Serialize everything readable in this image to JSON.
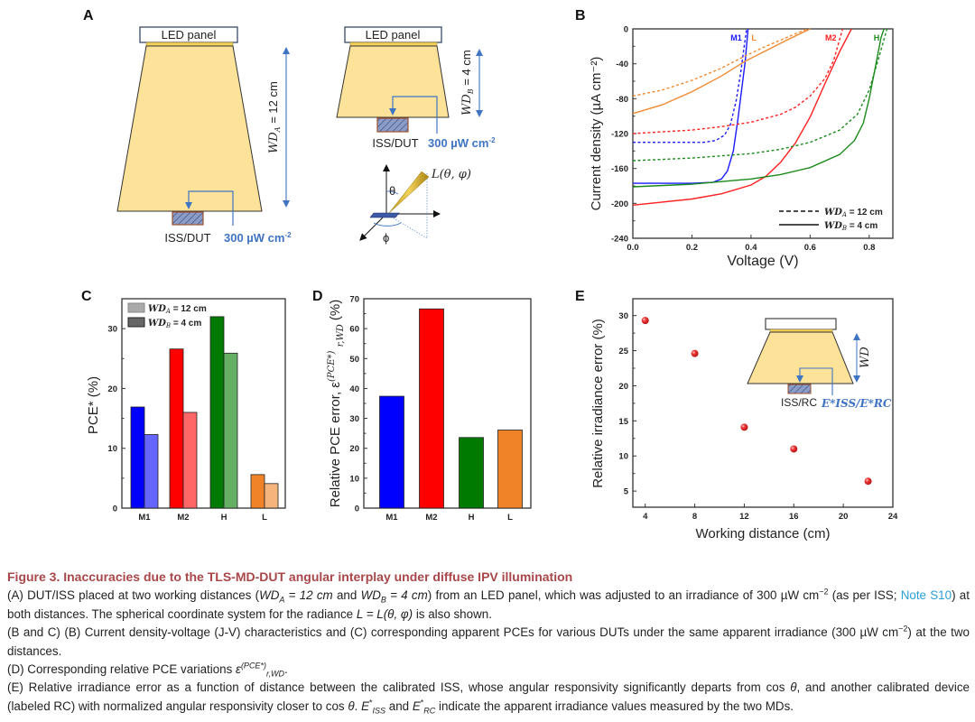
{
  "panel_labels": {
    "a": "A",
    "b": "B",
    "c": "C",
    "d": "D",
    "e": "E"
  },
  "panel_a": {
    "led_panel": "LED panel",
    "iss_dut": "ISS/DUT",
    "irradiance": "300 µW cm",
    "irradiance_exp": "-2",
    "wd_a": {
      "var": "WD",
      "sub": "A",
      "rest": " = 12 cm"
    },
    "wd_b": {
      "var": "WD",
      "sub": "B",
      "rest": " = 4 cm"
    },
    "radiance": "L(θ, φ)",
    "theta": "θ",
    "phi": "ϕ",
    "colors": {
      "beam": "#fde39a",
      "arrow": "#3f74c2",
      "dut_fill": "#8a9cc8",
      "dut_border": "#a0522d"
    }
  },
  "panel_e_inset": {
    "iss_rc": "ISS/RC",
    "wd": "WD",
    "e_iss": "E*ISS",
    "e_sep": "/",
    "e_rc": "E*RC"
  },
  "chart_data": [
    {
      "id": "B",
      "type": "line",
      "xlabel": "Voltage (V)",
      "ylabel": "Current density (µA cm⁻²)",
      "xlim": [
        0,
        0.88
      ],
      "ylim": [
        -240,
        0
      ],
      "xticks": [
        "0.0",
        "0.2",
        "0.4",
        "0.6",
        "0.8"
      ],
      "xtick_values": [
        0,
        0.2,
        0.4,
        0.6,
        0.8
      ],
      "yticks": [
        "0",
        "-40",
        "-80",
        "-120",
        "-160",
        "-200",
        "-240"
      ],
      "ytick_values": [
        0,
        -40,
        -80,
        -120,
        -160,
        -200,
        -240
      ],
      "legend": {
        "placement": "bottom-right",
        "dashed": {
          "var": "WD",
          "sub": "A",
          "rest": " = 12 cm"
        },
        "solid": {
          "var": "WD",
          "sub": "B",
          "rest": " = 4 cm"
        }
      },
      "series_labels": [
        {
          "text": "M1",
          "color": "#1a1aff",
          "x": 0.35
        },
        {
          "text": "L",
          "color": "#f08a30",
          "x": 0.41
        },
        {
          "text": "M2",
          "color": "#ff2020",
          "x": 0.67
        },
        {
          "text": "H",
          "color": "#1a8a1a",
          "x": 0.825
        }
      ],
      "series": [
        {
          "name": "M1",
          "distance": "WD_B = 4 cm",
          "style": "solid",
          "color": "#1a1aff",
          "points": [
            [
              0,
              -177
            ],
            [
              0.2,
              -177
            ],
            [
              0.27,
              -176
            ],
            [
              0.3,
              -172
            ],
            [
              0.32,
              -163
            ],
            [
              0.34,
              -140
            ],
            [
              0.355,
              -105
            ],
            [
              0.37,
              -65
            ],
            [
              0.38,
              -38
            ],
            [
              0.39,
              0
            ]
          ]
        },
        {
          "name": "M1",
          "distance": "WD_A = 12 cm",
          "style": "dashed",
          "color": "#1a1aff",
          "points": [
            [
              0,
              -130
            ],
            [
              0.24,
              -130
            ],
            [
              0.28,
              -128
            ],
            [
              0.31,
              -122
            ],
            [
              0.33,
              -110
            ],
            [
              0.35,
              -82
            ],
            [
              0.365,
              -50
            ],
            [
              0.375,
              -25
            ],
            [
              0.385,
              0
            ]
          ]
        },
        {
          "name": "L",
          "distance": "WD_B = 4 cm",
          "style": "solid",
          "color": "#f08a30",
          "points": [
            [
              0,
              -97
            ],
            [
              0.1,
              -87
            ],
            [
              0.2,
              -72
            ],
            [
              0.3,
              -54
            ],
            [
              0.38,
              -37
            ],
            [
              0.45,
              -25
            ],
            [
              0.52,
              -13
            ],
            [
              0.6,
              0
            ]
          ]
        },
        {
          "name": "L",
          "distance": "WD_A = 12 cm",
          "style": "dashed",
          "color": "#f08a30",
          "points": [
            [
              0,
              -77
            ],
            [
              0.1,
              -70
            ],
            [
              0.2,
              -59
            ],
            [
              0.3,
              -45
            ],
            [
              0.38,
              -31
            ],
            [
              0.45,
              -20
            ],
            [
              0.52,
              -10
            ],
            [
              0.59,
              0
            ]
          ]
        },
        {
          "name": "M2",
          "distance": "WD_B = 4 cm",
          "style": "solid",
          "color": "#ff2020",
          "points": [
            [
              0,
              -202
            ],
            [
              0.2,
              -195
            ],
            [
              0.3,
              -189
            ],
            [
              0.4,
              -179
            ],
            [
              0.45,
              -169
            ],
            [
              0.5,
              -153
            ],
            [
              0.55,
              -131
            ],
            [
              0.6,
              -101
            ],
            [
              0.65,
              -63
            ],
            [
              0.7,
              -26
            ],
            [
              0.74,
              0
            ]
          ]
        },
        {
          "name": "M2",
          "distance": "WD_A = 12 cm",
          "style": "dashed",
          "color": "#ff2020",
          "points": [
            [
              0,
              -120
            ],
            [
              0.2,
              -116
            ],
            [
              0.3,
              -112
            ],
            [
              0.4,
              -107
            ],
            [
              0.5,
              -98
            ],
            [
              0.55,
              -90
            ],
            [
              0.6,
              -77
            ],
            [
              0.65,
              -57
            ],
            [
              0.68,
              -36
            ],
            [
              0.71,
              0
            ]
          ]
        },
        {
          "name": "H",
          "distance": "WD_B = 4 cm",
          "style": "solid",
          "color": "#1a8a1a",
          "points": [
            [
              0,
              -181
            ],
            [
              0.2,
              -178
            ],
            [
              0.4,
              -172
            ],
            [
              0.5,
              -167
            ],
            [
              0.6,
              -159
            ],
            [
              0.7,
              -144
            ],
            [
              0.75,
              -128
            ],
            [
              0.78,
              -108
            ],
            [
              0.8,
              -80
            ],
            [
              0.82,
              -45
            ],
            [
              0.84,
              -10
            ],
            [
              0.85,
              0
            ]
          ]
        },
        {
          "name": "H",
          "distance": "WD_A = 12 cm",
          "style": "dashed",
          "color": "#1a8a1a",
          "points": [
            [
              0,
              -151
            ],
            [
              0.2,
              -148
            ],
            [
              0.4,
              -143
            ],
            [
              0.5,
              -138
            ],
            [
              0.6,
              -130
            ],
            [
              0.7,
              -116
            ],
            [
              0.76,
              -98
            ],
            [
              0.8,
              -70
            ],
            [
              0.83,
              -36
            ],
            [
              0.86,
              0
            ]
          ]
        }
      ]
    },
    {
      "id": "C",
      "type": "bar",
      "ylabel": "PCE* (%)",
      "xlabel": "",
      "categories": [
        "M1",
        "M2",
        "H",
        "L"
      ],
      "ylim": [
        0,
        35
      ],
      "yticks": [
        "0",
        "10",
        "20",
        "30"
      ],
      "ytick_values": [
        0,
        10,
        20,
        30
      ],
      "legend": {
        "placement": "top-left",
        "a": {
          "var": "WD",
          "sub": "A",
          "rest": " = 12 cm"
        },
        "b": {
          "var": "WD",
          "sub": "B",
          "rest": " = 4 cm"
        }
      },
      "series": [
        {
          "name": "WD_B = 4 cm",
          "values": [
            16.9,
            26.6,
            32.0,
            5.6
          ],
          "colors": [
            "#0000ff",
            "#ff0000",
            "#007a00",
            "#f08228"
          ]
        },
        {
          "name": "WD_A = 12 cm",
          "values": [
            12.3,
            16.0,
            25.9,
            4.1
          ],
          "colors": [
            "#6666ff",
            "#ff6666",
            "#66b066",
            "#f5b47c"
          ]
        }
      ]
    },
    {
      "id": "D",
      "type": "bar",
      "ylabel": "Relative PCE error, ε(PCE*) r,WD (%)",
      "ylabel_main": "Relative PCE error, ε",
      "ylabel_sup": "(PCE*)",
      "ylabel_sub": "r,WD",
      "ylabel_unit": "(%)",
      "categories": [
        "M1",
        "M2",
        "H",
        "L"
      ],
      "ylim": [
        0,
        70
      ],
      "yticks": [
        "0",
        "10",
        "20",
        "30",
        "40",
        "50",
        "60",
        "70"
      ],
      "ytick_values": [
        0,
        10,
        20,
        30,
        40,
        50,
        60,
        70
      ],
      "values": [
        37.4,
        66.6,
        23.6,
        26.1
      ],
      "colors": [
        "#0000ff",
        "#ff0000",
        "#007a00",
        "#f08228"
      ]
    },
    {
      "id": "E",
      "type": "scatter",
      "xlabel": "Working distance (cm)",
      "ylabel": "Relative irradiance error (%)",
      "xlim": [
        3,
        24
      ],
      "ylim": [
        2.7,
        32.4
      ],
      "xticks": [
        "4",
        "8",
        "12",
        "16",
        "20",
        "24"
      ],
      "xtick_values": [
        4,
        8,
        12,
        16,
        20,
        24
      ],
      "yticks": [
        "5",
        "10",
        "15",
        "20",
        "25",
        "30"
      ],
      "ytick_values": [
        5,
        10,
        15,
        20,
        25,
        30
      ],
      "x": [
        4,
        8,
        12,
        16,
        22
      ],
      "y": [
        29.3,
        24.6,
        14.1,
        11.0,
        6.4
      ],
      "color": "#e83030"
    }
  ],
  "caption": {
    "title": "Figure 3.  Inaccuracies due to the TLS-MD-DUT angular interplay under diffuse IPV illumination",
    "a": {
      "t1": "(A) DUT/ISS placed at two working distances (",
      "wd": "WD",
      "sub_a": "A",
      "eq_a": " = 12 cm",
      "and": " and ",
      "sub_b": "B",
      "eq_b": " =  4 cm",
      "t2": ") from an LED panel, which was adjusted to an irradiance of 300 µW cm",
      "exp": "−2",
      "t3": " (as per ISS; ",
      "link": "Note S10",
      "t4": ") at both distances. The spherical coordinate system for the radiance ",
      "eq": "L = L(θ, φ)",
      "t5": " is also shown."
    },
    "bc": {
      "t1": "(B and C) (B) Current density-voltage (J-V) characteristics and (C) corresponding apparent PCEs for various DUTs under the same apparent irradiance (300 µW cm",
      "exp": "−2",
      "t2": ") at the two distances."
    },
    "d": {
      "t1": "(D) Corresponding relative PCE variations ",
      "eps": "ε",
      "sup": "(PCE*)",
      "sub": "r,WD",
      "t2": "."
    },
    "e": {
      "t1": "(E) Relative irradiance error as a function of distance between the calibrated ISS, whose angular responsivity significantly departs from cos ",
      "theta": "θ",
      "t2": ", and another calibrated device (labeled RC) with normalized angular responsivity closer to cos ",
      "t3": ". ",
      "e": "E",
      "star": "*",
      "iss": "ISS",
      "and": " and ",
      "rc": "RC",
      "t4": " indicate the apparent irradiance values measured by the two MDs."
    }
  }
}
